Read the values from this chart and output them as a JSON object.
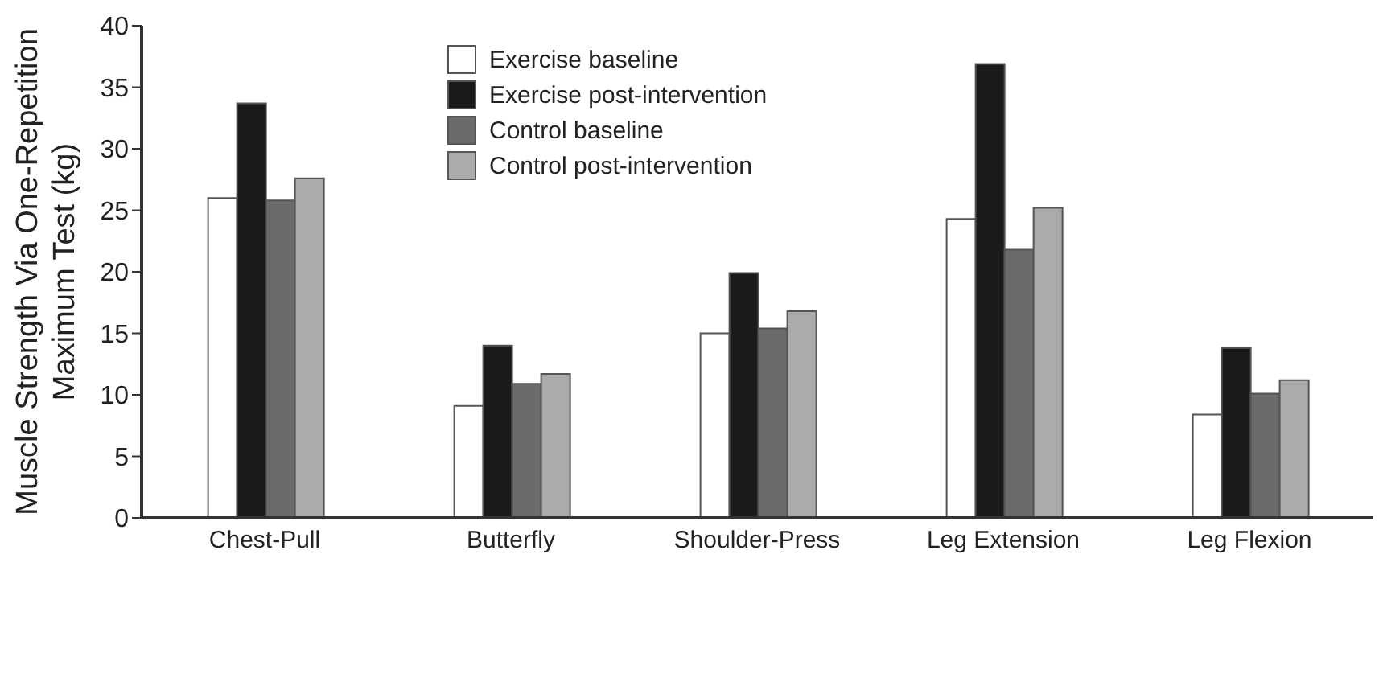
{
  "chart_data": {
    "type": "bar",
    "ylabel": "Muscle Strength Via One-Repetition\nMaximum Test (kg)",
    "categories": [
      "Chest-Pull",
      "Butterfly",
      "Shoulder-Press",
      "Leg Extension",
      "Leg Flexion"
    ],
    "series": [
      {
        "name": "Exercise baseline",
        "color": "#ffffff",
        "values": [
          26.0,
          9.1,
          15.0,
          24.3,
          8.4
        ]
      },
      {
        "name": "Exercise post-intervention",
        "color": "#1a1a1a",
        "values": [
          33.7,
          14.0,
          19.9,
          36.9,
          13.8
        ]
      },
      {
        "name": "Control baseline",
        "color": "#6b6b6b",
        "values": [
          25.8,
          10.9,
          15.4,
          21.8,
          10.1
        ]
      },
      {
        "name": "Control post-intervention",
        "color": "#ababab",
        "values": [
          27.6,
          11.7,
          16.8,
          25.2,
          11.2
        ]
      }
    ],
    "ylim": [
      0,
      40
    ],
    "yticks": [
      0,
      5,
      10,
      15,
      20,
      25,
      30,
      35,
      40
    ],
    "grid": false,
    "legend": "top"
  }
}
